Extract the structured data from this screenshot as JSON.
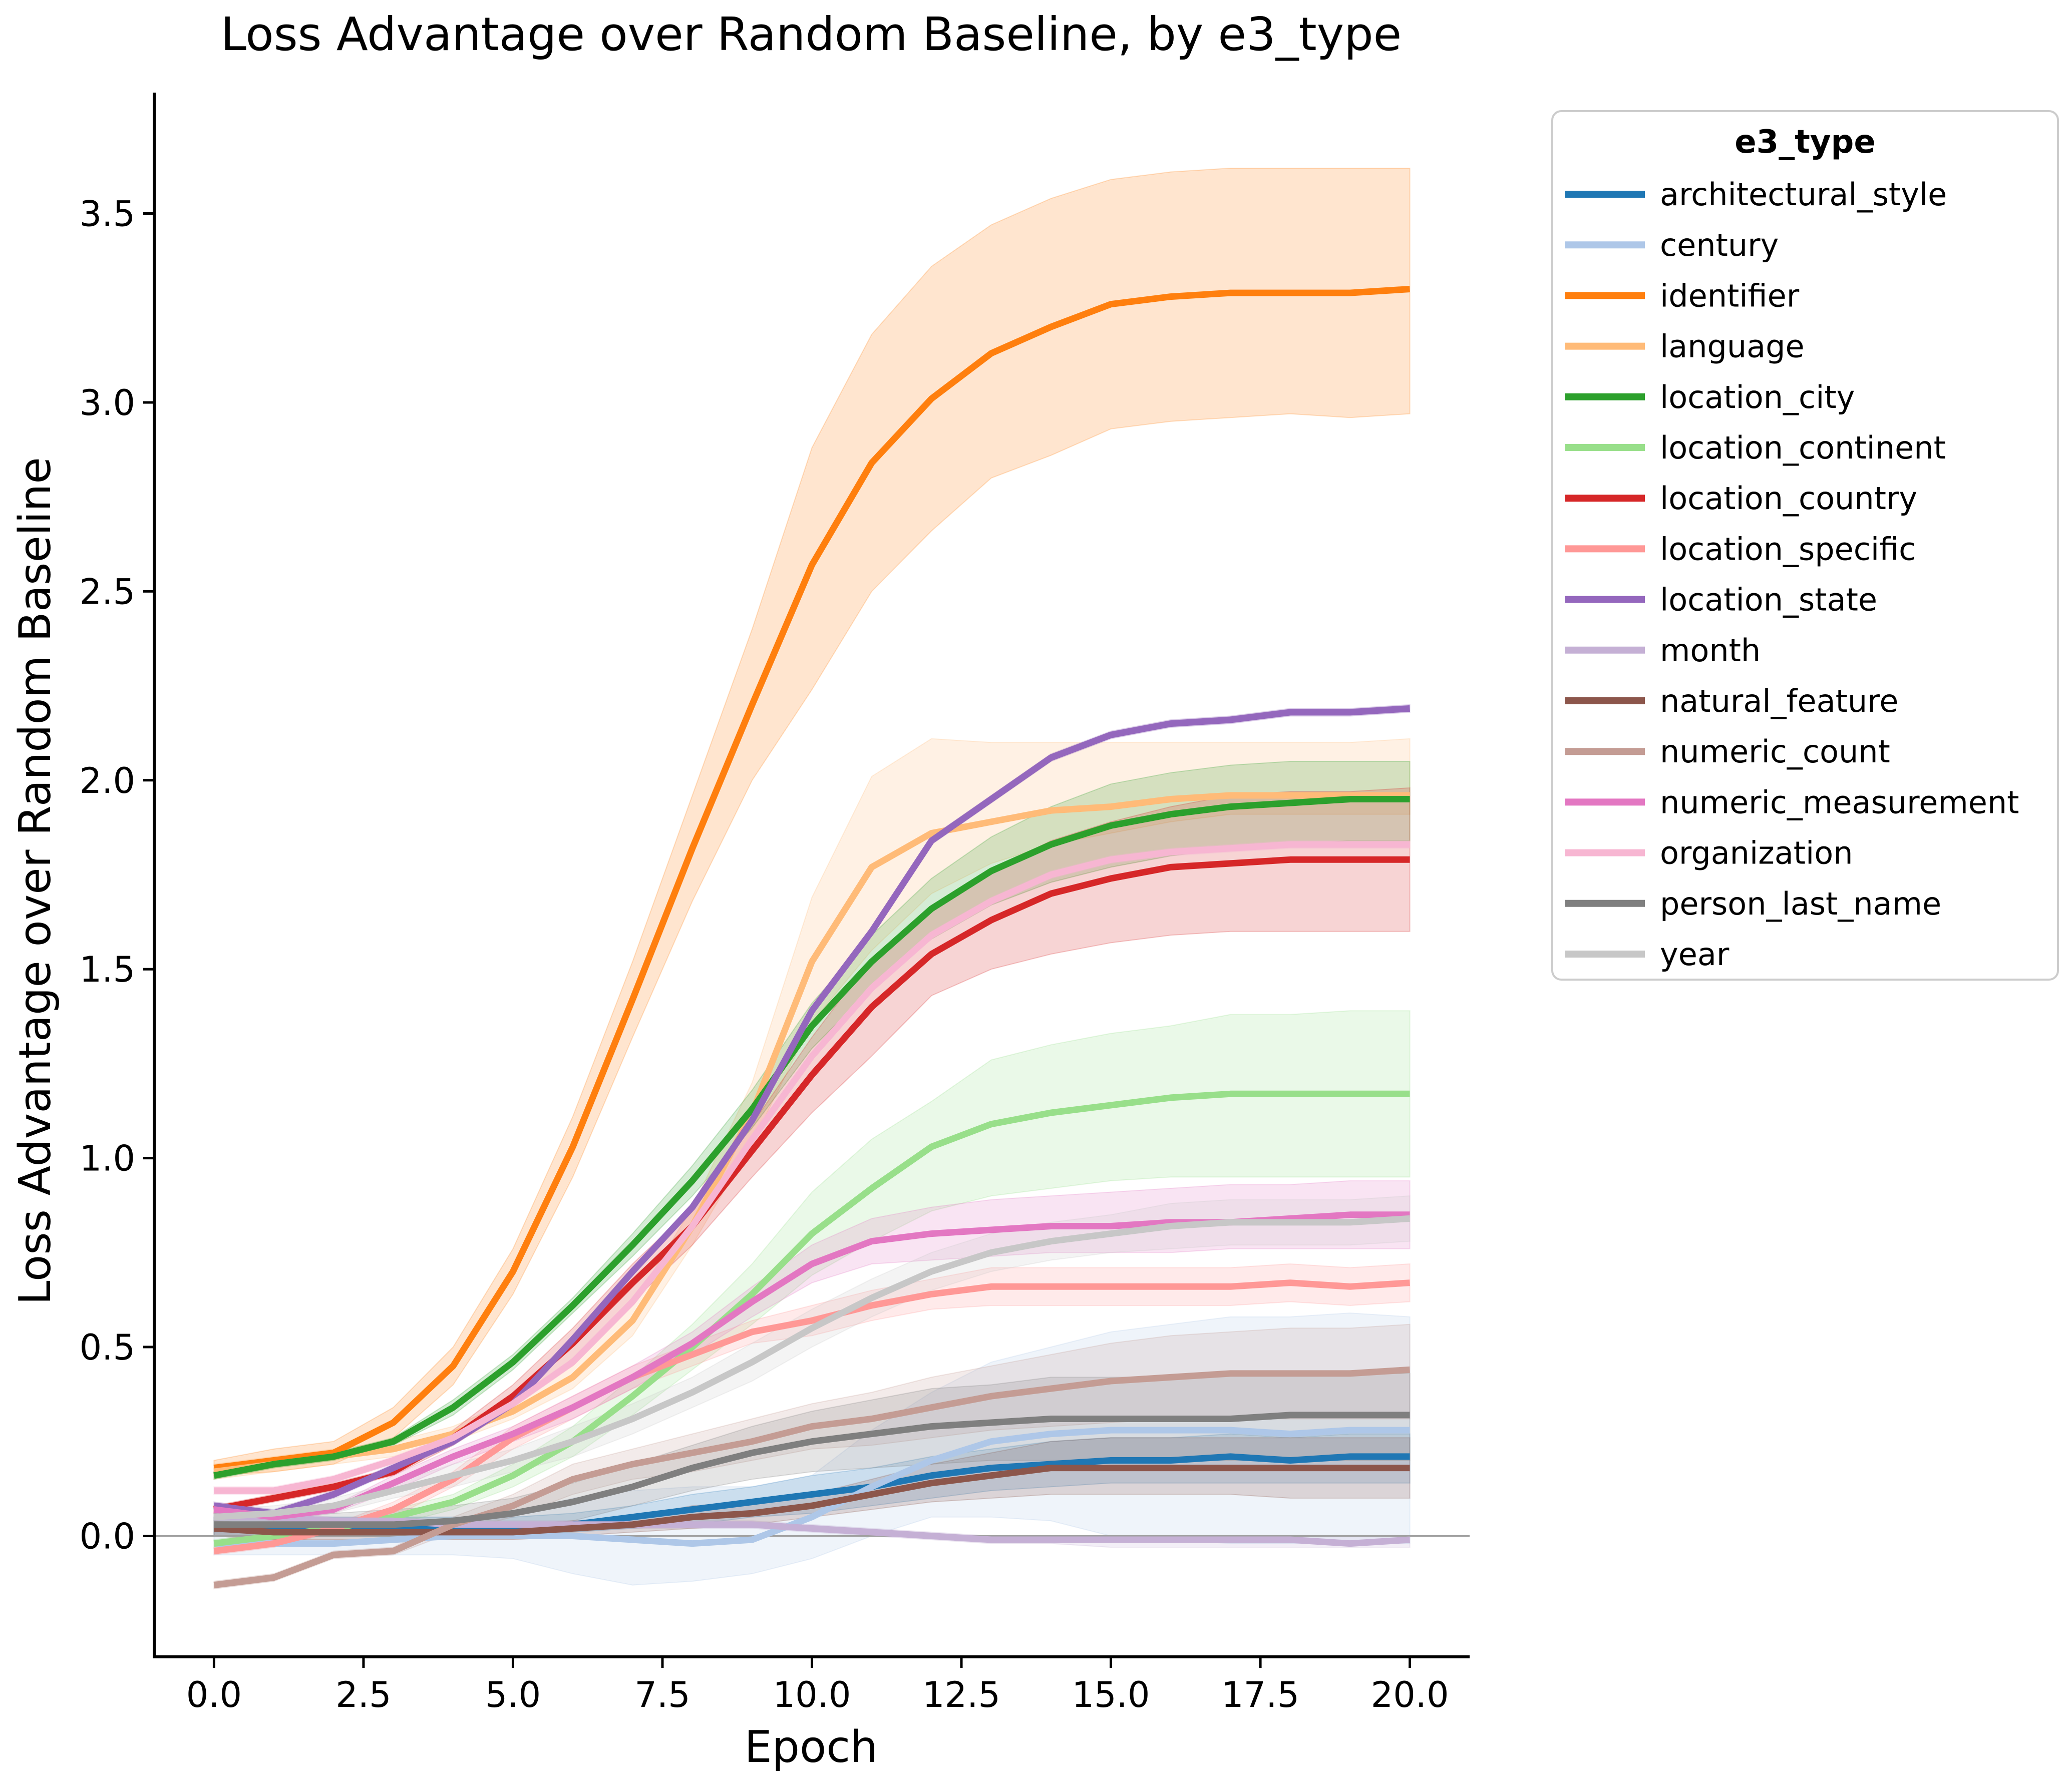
{
  "chart_data": {
    "type": "line",
    "title": "Loss Advantage over Random Baseline, by e3_type",
    "xlabel": "Epoch",
    "ylabel": "Loss Advantage over Random Baseline",
    "xlim": [
      -1,
      21
    ],
    "ylim": [
      -0.32,
      3.82
    ],
    "xticks": [
      "0.0",
      "2.5",
      "5.0",
      "7.5",
      "10.0",
      "12.5",
      "15.0",
      "17.5",
      "20.0"
    ],
    "yticks": [
      "0.0",
      "0.5",
      "1.0",
      "1.5",
      "2.0",
      "2.5",
      "3.0",
      "3.5"
    ],
    "reference_line_y": 0,
    "grid": false,
    "legend": {
      "title": "e3_type",
      "placement": "outside right, upper"
    },
    "x": [
      0,
      1,
      2,
      3,
      4,
      5,
      6,
      7,
      8,
      9,
      10,
      11,
      12,
      13,
      14,
      15,
      16,
      17,
      18,
      19,
      20
    ],
    "series": [
      {
        "name": "architectural_style",
        "color": "#1f77b4",
        "values": [
          0.02,
          0.02,
          0.02,
          0.02,
          0.02,
          0.02,
          0.03,
          0.05,
          0.07,
          0.09,
          0.11,
          0.13,
          0.16,
          0.18,
          0.19,
          0.2,
          0.2,
          0.21,
          0.2,
          0.21,
          0.21
        ],
        "lower": [
          0.0,
          0.0,
          0.0,
          0.0,
          0.0,
          0.0,
          0.01,
          0.02,
          0.03,
          0.05,
          0.06,
          0.08,
          0.1,
          0.12,
          0.13,
          0.14,
          0.14,
          0.14,
          0.14,
          0.14,
          0.14
        ],
        "upper": [
          0.05,
          0.05,
          0.05,
          0.05,
          0.05,
          0.05,
          0.06,
          0.08,
          0.11,
          0.13,
          0.16,
          0.18,
          0.21,
          0.23,
          0.25,
          0.26,
          0.26,
          0.27,
          0.26,
          0.27,
          0.27
        ]
      },
      {
        "name": "century",
        "color": "#aec7e8",
        "values": [
          -0.02,
          -0.02,
          -0.02,
          -0.01,
          0.0,
          0.0,
          0.0,
          -0.01,
          -0.02,
          -0.01,
          0.05,
          0.13,
          0.2,
          0.25,
          0.27,
          0.28,
          0.28,
          0.28,
          0.27,
          0.28,
          0.28
        ],
        "lower": [
          -0.05,
          -0.05,
          -0.05,
          -0.05,
          -0.05,
          -0.06,
          -0.1,
          -0.13,
          -0.12,
          -0.1,
          -0.06,
          0.0,
          0.05,
          0.05,
          0.04,
          0.0,
          -0.01,
          -0.02,
          -0.02,
          -0.02,
          -0.02
        ],
        "upper": [
          0.01,
          0.01,
          0.01,
          0.02,
          0.04,
          0.06,
          0.1,
          0.12,
          0.13,
          0.13,
          0.16,
          0.28,
          0.38,
          0.46,
          0.5,
          0.54,
          0.56,
          0.58,
          0.58,
          0.59,
          0.58
        ]
      },
      {
        "name": "identifier",
        "color": "#ff7f0e",
        "values": [
          0.18,
          0.2,
          0.22,
          0.3,
          0.45,
          0.7,
          1.03,
          1.42,
          1.82,
          2.2,
          2.57,
          2.84,
          3.01,
          3.13,
          3.2,
          3.26,
          3.28,
          3.29,
          3.29,
          3.29,
          3.3
        ],
        "lower": [
          0.16,
          0.17,
          0.19,
          0.26,
          0.4,
          0.64,
          0.95,
          1.32,
          1.68,
          2.0,
          2.24,
          2.5,
          2.66,
          2.8,
          2.86,
          2.93,
          2.95,
          2.96,
          2.97,
          2.96,
          2.97
        ],
        "upper": [
          0.2,
          0.23,
          0.25,
          0.34,
          0.5,
          0.76,
          1.11,
          1.52,
          1.96,
          2.4,
          2.88,
          3.18,
          3.36,
          3.47,
          3.54,
          3.59,
          3.61,
          3.62,
          3.62,
          3.62,
          3.62
        ]
      },
      {
        "name": "language",
        "color": "#ffbb78",
        "values": [
          0.17,
          0.19,
          0.21,
          0.23,
          0.27,
          0.33,
          0.42,
          0.57,
          0.82,
          1.12,
          1.52,
          1.77,
          1.86,
          1.89,
          1.92,
          1.93,
          1.95,
          1.96,
          1.96,
          1.96,
          1.96
        ],
        "lower": [
          0.15,
          0.17,
          0.19,
          0.21,
          0.25,
          0.31,
          0.39,
          0.53,
          0.77,
          1.04,
          1.36,
          1.55,
          1.7,
          1.78,
          1.83,
          1.86,
          1.89,
          1.91,
          1.91,
          1.91,
          1.91
        ],
        "upper": [
          0.19,
          0.21,
          0.23,
          0.25,
          0.29,
          0.36,
          0.45,
          0.61,
          0.87,
          1.2,
          1.69,
          2.01,
          2.11,
          2.1,
          2.1,
          2.1,
          2.1,
          2.1,
          2.1,
          2.1,
          2.11
        ]
      },
      {
        "name": "location_city",
        "color": "#2ca02c",
        "values": [
          0.16,
          0.19,
          0.21,
          0.25,
          0.34,
          0.46,
          0.61,
          0.77,
          0.94,
          1.13,
          1.35,
          1.52,
          1.66,
          1.76,
          1.83,
          1.88,
          1.91,
          1.93,
          1.94,
          1.95,
          1.95
        ],
        "lower": [
          0.15,
          0.18,
          0.2,
          0.24,
          0.32,
          0.44,
          0.59,
          0.74,
          0.9,
          1.08,
          1.29,
          1.45,
          1.58,
          1.67,
          1.73,
          1.77,
          1.8,
          1.82,
          1.83,
          1.84,
          1.84
        ],
        "upper": [
          0.17,
          0.2,
          0.22,
          0.26,
          0.36,
          0.48,
          0.63,
          0.8,
          0.98,
          1.18,
          1.41,
          1.59,
          1.74,
          1.85,
          1.93,
          1.99,
          2.02,
          2.04,
          2.05,
          2.05,
          2.05
        ]
      },
      {
        "name": "location_continent",
        "color": "#98df8a",
        "values": [
          -0.02,
          0.0,
          0.02,
          0.05,
          0.09,
          0.16,
          0.25,
          0.37,
          0.5,
          0.64,
          0.8,
          0.92,
          1.03,
          1.09,
          1.12,
          1.14,
          1.16,
          1.17,
          1.17,
          1.17,
          1.17
        ],
        "lower": [
          -0.03,
          -0.01,
          0.01,
          0.03,
          0.07,
          0.13,
          0.21,
          0.32,
          0.44,
          0.56,
          0.69,
          0.78,
          0.86,
          0.9,
          0.92,
          0.94,
          0.95,
          0.95,
          0.95,
          0.95,
          0.95
        ],
        "upper": [
          -0.01,
          0.01,
          0.03,
          0.07,
          0.11,
          0.19,
          0.29,
          0.42,
          0.56,
          0.72,
          0.91,
          1.05,
          1.15,
          1.26,
          1.3,
          1.33,
          1.35,
          1.38,
          1.38,
          1.39,
          1.39
        ]
      },
      {
        "name": "location_country",
        "color": "#d62728",
        "values": [
          0.07,
          0.1,
          0.13,
          0.17,
          0.26,
          0.37,
          0.51,
          0.67,
          0.82,
          1.02,
          1.22,
          1.4,
          1.54,
          1.63,
          1.7,
          1.74,
          1.77,
          1.78,
          1.79,
          1.79,
          1.79
        ],
        "lower": [
          0.06,
          0.09,
          0.12,
          0.16,
          0.24,
          0.34,
          0.47,
          0.62,
          0.77,
          0.95,
          1.12,
          1.27,
          1.43,
          1.5,
          1.54,
          1.57,
          1.59,
          1.6,
          1.6,
          1.6,
          1.6
        ],
        "upper": [
          0.08,
          0.11,
          0.14,
          0.18,
          0.28,
          0.4,
          0.55,
          0.72,
          0.87,
          1.09,
          1.32,
          1.53,
          1.66,
          1.76,
          1.84,
          1.89,
          1.93,
          1.96,
          1.97,
          1.97,
          1.98
        ]
      },
      {
        "name": "location_specific",
        "color": "#ff9896",
        "values": [
          -0.04,
          -0.02,
          0.02,
          0.07,
          0.15,
          0.26,
          0.34,
          0.42,
          0.48,
          0.54,
          0.57,
          0.61,
          0.64,
          0.66,
          0.66,
          0.66,
          0.66,
          0.66,
          0.67,
          0.66,
          0.67
        ],
        "lower": [
          -0.05,
          -0.03,
          0.01,
          0.05,
          0.13,
          0.23,
          0.31,
          0.39,
          0.45,
          0.51,
          0.53,
          0.57,
          0.6,
          0.61,
          0.61,
          0.61,
          0.61,
          0.61,
          0.62,
          0.61,
          0.62
        ],
        "upper": [
          -0.03,
          -0.01,
          0.03,
          0.09,
          0.17,
          0.29,
          0.37,
          0.45,
          0.51,
          0.57,
          0.61,
          0.65,
          0.68,
          0.71,
          0.71,
          0.71,
          0.71,
          0.71,
          0.72,
          0.71,
          0.72
        ]
      },
      {
        "name": "location_state",
        "color": "#9467bd",
        "values": [
          0.08,
          0.06,
          0.11,
          0.18,
          0.25,
          0.35,
          0.52,
          0.7,
          0.87,
          1.1,
          1.39,
          1.6,
          1.84,
          1.95,
          2.06,
          2.12,
          2.15,
          2.16,
          2.18,
          2.18,
          2.19
        ],
        "lower": [
          0.07,
          0.05,
          0.1,
          0.17,
          0.24,
          0.34,
          0.51,
          0.69,
          0.86,
          1.09,
          1.38,
          1.59,
          1.83,
          1.94,
          2.05,
          2.11,
          2.14,
          2.15,
          2.17,
          2.17,
          2.18
        ],
        "upper": [
          0.09,
          0.07,
          0.12,
          0.19,
          0.26,
          0.36,
          0.53,
          0.71,
          0.88,
          1.11,
          1.4,
          1.61,
          1.85,
          1.96,
          2.07,
          2.13,
          2.16,
          2.17,
          2.19,
          2.19,
          2.2
        ]
      },
      {
        "name": "month",
        "color": "#c5b0d5",
        "values": [
          0.05,
          0.05,
          0.04,
          0.04,
          0.03,
          0.03,
          0.03,
          0.03,
          0.03,
          0.03,
          0.02,
          0.01,
          0.0,
          -0.01,
          -0.01,
          -0.01,
          -0.01,
          -0.01,
          -0.01,
          -0.02,
          -0.01
        ],
        "lower": [
          0.04,
          0.04,
          0.03,
          0.03,
          0.02,
          0.02,
          0.02,
          0.02,
          0.02,
          0.02,
          0.01,
          0.0,
          -0.01,
          -0.02,
          -0.02,
          -0.03,
          -0.03,
          -0.03,
          -0.03,
          -0.03,
          -0.03
        ],
        "upper": [
          0.06,
          0.06,
          0.05,
          0.05,
          0.04,
          0.04,
          0.04,
          0.04,
          0.04,
          0.04,
          0.03,
          0.02,
          0.01,
          0.0,
          0.0,
          0.0,
          0.0,
          0.0,
          0.0,
          0.0,
          0.0
        ]
      },
      {
        "name": "natural_feature",
        "color": "#8c564b",
        "values": [
          0.02,
          0.01,
          0.01,
          0.01,
          0.01,
          0.01,
          0.02,
          0.03,
          0.05,
          0.06,
          0.08,
          0.11,
          0.14,
          0.16,
          0.18,
          0.18,
          0.18,
          0.18,
          0.18,
          0.18,
          0.18
        ],
        "lower": [
          0.0,
          -0.01,
          -0.01,
          -0.01,
          -0.01,
          -0.01,
          0.0,
          0.01,
          0.02,
          0.03,
          0.05,
          0.07,
          0.09,
          0.1,
          0.11,
          0.11,
          0.11,
          0.11,
          0.1,
          0.1,
          0.1
        ],
        "upper": [
          0.04,
          0.03,
          0.03,
          0.03,
          0.03,
          0.03,
          0.04,
          0.05,
          0.08,
          0.09,
          0.11,
          0.15,
          0.19,
          0.22,
          0.25,
          0.26,
          0.26,
          0.26,
          0.26,
          0.26,
          0.26
        ]
      },
      {
        "name": "numeric_count",
        "color": "#c49c94",
        "values": [
          -0.13,
          -0.11,
          -0.05,
          -0.04,
          0.03,
          0.08,
          0.15,
          0.19,
          0.22,
          0.25,
          0.29,
          0.31,
          0.34,
          0.37,
          0.39,
          0.41,
          0.42,
          0.43,
          0.43,
          0.43,
          0.44
        ],
        "lower": [
          -0.14,
          -0.12,
          -0.06,
          -0.05,
          0.01,
          0.05,
          0.11,
          0.15,
          0.17,
          0.2,
          0.23,
          0.24,
          0.26,
          0.28,
          0.29,
          0.3,
          0.31,
          0.31,
          0.31,
          0.31,
          0.31
        ],
        "upper": [
          -0.12,
          -0.1,
          -0.04,
          -0.03,
          0.05,
          0.11,
          0.19,
          0.23,
          0.27,
          0.31,
          0.35,
          0.38,
          0.42,
          0.45,
          0.48,
          0.51,
          0.53,
          0.54,
          0.55,
          0.55,
          0.56
        ]
      },
      {
        "name": "numeric_measurement",
        "color": "#e377c2",
        "values": [
          0.07,
          0.05,
          0.07,
          0.14,
          0.21,
          0.27,
          0.34,
          0.42,
          0.51,
          0.62,
          0.72,
          0.78,
          0.8,
          0.81,
          0.82,
          0.82,
          0.83,
          0.83,
          0.84,
          0.85,
          0.85
        ],
        "lower": [
          0.06,
          0.04,
          0.06,
          0.12,
          0.19,
          0.25,
          0.31,
          0.39,
          0.48,
          0.58,
          0.67,
          0.72,
          0.73,
          0.74,
          0.75,
          0.75,
          0.75,
          0.76,
          0.76,
          0.76,
          0.76
        ],
        "upper": [
          0.08,
          0.06,
          0.08,
          0.16,
          0.23,
          0.29,
          0.37,
          0.45,
          0.54,
          0.66,
          0.77,
          0.84,
          0.87,
          0.89,
          0.9,
          0.91,
          0.92,
          0.93,
          0.93,
          0.94,
          0.94
        ]
      },
      {
        "name": "organization",
        "color": "#f7b6d2",
        "values": [
          0.12,
          0.12,
          0.15,
          0.2,
          0.26,
          0.35,
          0.46,
          0.62,
          0.82,
          1.05,
          1.27,
          1.45,
          1.59,
          1.68,
          1.75,
          1.79,
          1.81,
          1.82,
          1.83,
          1.83,
          1.83
        ],
        "lower": [
          0.11,
          0.11,
          0.14,
          0.19,
          0.25,
          0.34,
          0.45,
          0.61,
          0.81,
          1.04,
          1.26,
          1.44,
          1.58,
          1.67,
          1.74,
          1.78,
          1.8,
          1.81,
          1.82,
          1.82,
          1.82
        ],
        "upper": [
          0.13,
          0.13,
          0.16,
          0.21,
          0.27,
          0.36,
          0.47,
          0.63,
          0.83,
          1.06,
          1.28,
          1.46,
          1.6,
          1.69,
          1.76,
          1.8,
          1.82,
          1.83,
          1.84,
          1.84,
          1.84
        ]
      },
      {
        "name": "person_last_name",
        "color": "#7f7f7f",
        "values": [
          0.03,
          0.03,
          0.03,
          0.03,
          0.04,
          0.06,
          0.09,
          0.13,
          0.18,
          0.22,
          0.25,
          0.27,
          0.29,
          0.3,
          0.31,
          0.31,
          0.31,
          0.31,
          0.32,
          0.32,
          0.32
        ],
        "lower": [
          0.0,
          0.0,
          0.0,
          0.0,
          0.01,
          0.02,
          0.04,
          0.08,
          0.12,
          0.15,
          0.17,
          0.18,
          0.19,
          0.2,
          0.2,
          0.2,
          0.2,
          0.2,
          0.2,
          0.2,
          0.2
        ],
        "upper": [
          0.06,
          0.06,
          0.06,
          0.07,
          0.08,
          0.1,
          0.14,
          0.19,
          0.24,
          0.29,
          0.33,
          0.36,
          0.39,
          0.4,
          0.42,
          0.42,
          0.42,
          0.43,
          0.43,
          0.43,
          0.43
        ]
      },
      {
        "name": "year",
        "color": "#c7c7c7",
        "values": [
          0.05,
          0.06,
          0.08,
          0.12,
          0.16,
          0.2,
          0.25,
          0.31,
          0.38,
          0.46,
          0.55,
          0.63,
          0.7,
          0.75,
          0.78,
          0.8,
          0.82,
          0.83,
          0.83,
          0.83,
          0.84
        ],
        "lower": [
          0.03,
          0.04,
          0.06,
          0.1,
          0.13,
          0.17,
          0.21,
          0.27,
          0.34,
          0.41,
          0.5,
          0.58,
          0.65,
          0.7,
          0.73,
          0.75,
          0.76,
          0.77,
          0.77,
          0.77,
          0.78
        ],
        "upper": [
          0.07,
          0.08,
          0.1,
          0.14,
          0.19,
          0.23,
          0.29,
          0.35,
          0.42,
          0.51,
          0.6,
          0.68,
          0.75,
          0.8,
          0.83,
          0.85,
          0.88,
          0.89,
          0.89,
          0.89,
          0.9
        ]
      }
    ]
  }
}
